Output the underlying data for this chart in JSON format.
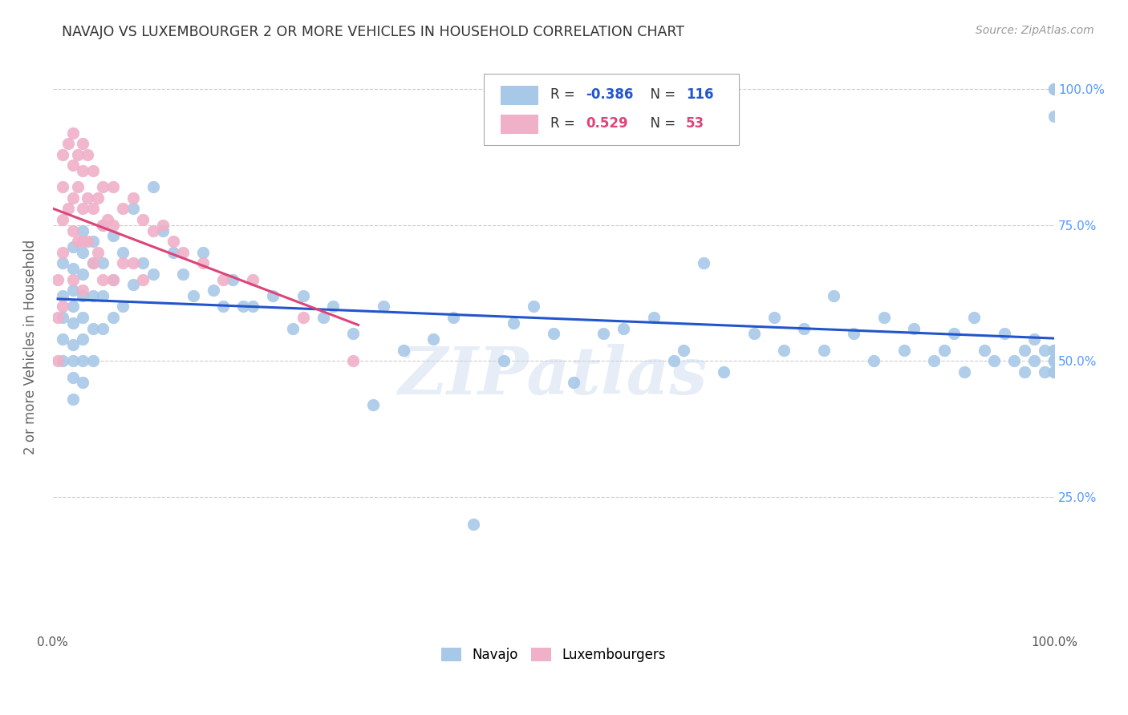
{
  "title": "NAVAJO VS LUXEMBOURGER 2 OR MORE VEHICLES IN HOUSEHOLD CORRELATION CHART",
  "source": "Source: ZipAtlas.com",
  "ylabel": "2 or more Vehicles in Household",
  "xlim": [
    0.0,
    1.0
  ],
  "ylim": [
    0.0,
    1.05
  ],
  "navajo_R": -0.386,
  "navajo_N": 116,
  "luxembourger_R": 0.529,
  "luxembourger_N": 53,
  "navajo_color": "#a8c8e8",
  "navajo_edge_color": "#a8c8e8",
  "navajo_line_color": "#2255cc",
  "luxembourger_color": "#f0b0c8",
  "luxembourger_edge_color": "#f0b0c8",
  "luxembourger_line_color": "#dd4477",
  "background_color": "#ffffff",
  "grid_color": "#cccccc",
  "title_color": "#333333",
  "source_color": "#999999",
  "axis_label_color": "#666666",
  "right_tick_color": "#5599ff",
  "watermark": "ZIPatlas",
  "navajo_x": [
    0.01,
    0.01,
    0.01,
    0.01,
    0.01,
    0.02,
    0.02,
    0.02,
    0.02,
    0.02,
    0.02,
    0.02,
    0.02,
    0.02,
    0.03,
    0.03,
    0.03,
    0.03,
    0.03,
    0.03,
    0.03,
    0.03,
    0.04,
    0.04,
    0.04,
    0.04,
    0.04,
    0.05,
    0.05,
    0.05,
    0.05,
    0.06,
    0.06,
    0.06,
    0.07,
    0.07,
    0.08,
    0.08,
    0.09,
    0.1,
    0.1,
    0.11,
    0.12,
    0.13,
    0.14,
    0.15,
    0.16,
    0.17,
    0.18,
    0.19,
    0.2,
    0.22,
    0.24,
    0.25,
    0.27,
    0.28,
    0.3,
    0.32,
    0.33,
    0.35,
    0.38,
    0.4,
    0.42,
    0.45,
    0.46,
    0.48,
    0.5,
    0.52,
    0.55,
    0.57,
    0.6,
    0.62,
    0.63,
    0.65,
    0.67,
    0.7,
    0.72,
    0.73,
    0.75,
    0.77,
    0.78,
    0.8,
    0.82,
    0.83,
    0.85,
    0.86,
    0.88,
    0.89,
    0.9,
    0.91,
    0.92,
    0.93,
    0.94,
    0.95,
    0.96,
    0.97,
    0.97,
    0.98,
    0.98,
    0.99,
    0.99,
    1.0,
    1.0,
    1.0,
    1.0,
    1.0,
    1.0,
    1.0,
    1.0,
    1.0,
    1.0,
    1.0,
    1.0,
    1.0,
    1.0,
    1.0,
    1.0
  ],
  "navajo_y": [
    0.68,
    0.62,
    0.58,
    0.54,
    0.5,
    0.71,
    0.67,
    0.63,
    0.6,
    0.57,
    0.53,
    0.5,
    0.47,
    0.43,
    0.74,
    0.7,
    0.66,
    0.62,
    0.58,
    0.54,
    0.5,
    0.46,
    0.72,
    0.68,
    0.62,
    0.56,
    0.5,
    0.75,
    0.68,
    0.62,
    0.56,
    0.73,
    0.65,
    0.58,
    0.7,
    0.6,
    0.78,
    0.64,
    0.68,
    0.82,
    0.66,
    0.74,
    0.7,
    0.66,
    0.62,
    0.7,
    0.63,
    0.6,
    0.65,
    0.6,
    0.6,
    0.62,
    0.56,
    0.62,
    0.58,
    0.6,
    0.55,
    0.42,
    0.6,
    0.52,
    0.54,
    0.58,
    0.2,
    0.5,
    0.57,
    0.6,
    0.55,
    0.46,
    0.55,
    0.56,
    0.58,
    0.5,
    0.52,
    0.68,
    0.48,
    0.55,
    0.58,
    0.52,
    0.56,
    0.52,
    0.62,
    0.55,
    0.5,
    0.58,
    0.52,
    0.56,
    0.5,
    0.52,
    0.55,
    0.48,
    0.58,
    0.52,
    0.5,
    0.55,
    0.5,
    0.52,
    0.48,
    0.54,
    0.5,
    0.52,
    0.48,
    0.52,
    0.5,
    0.48,
    0.5,
    0.52,
    0.5,
    0.48,
    0.5,
    1.0,
    1.0,
    0.95,
    0.52,
    0.5,
    0.48,
    0.5,
    0.52
  ],
  "lux_x": [
    0.005,
    0.005,
    0.005,
    0.01,
    0.01,
    0.01,
    0.01,
    0.01,
    0.015,
    0.015,
    0.02,
    0.02,
    0.02,
    0.02,
    0.02,
    0.025,
    0.025,
    0.025,
    0.03,
    0.03,
    0.03,
    0.03,
    0.03,
    0.035,
    0.035,
    0.035,
    0.04,
    0.04,
    0.04,
    0.045,
    0.045,
    0.05,
    0.05,
    0.05,
    0.055,
    0.06,
    0.06,
    0.06,
    0.07,
    0.07,
    0.08,
    0.08,
    0.09,
    0.09,
    0.1,
    0.11,
    0.12,
    0.13,
    0.15,
    0.17,
    0.2,
    0.25,
    0.3
  ],
  "lux_y": [
    0.65,
    0.58,
    0.5,
    0.88,
    0.82,
    0.76,
    0.7,
    0.6,
    0.9,
    0.78,
    0.92,
    0.86,
    0.8,
    0.74,
    0.65,
    0.88,
    0.82,
    0.72,
    0.9,
    0.85,
    0.78,
    0.72,
    0.63,
    0.88,
    0.8,
    0.72,
    0.85,
    0.78,
    0.68,
    0.8,
    0.7,
    0.82,
    0.75,
    0.65,
    0.76,
    0.82,
    0.75,
    0.65,
    0.78,
    0.68,
    0.8,
    0.68,
    0.76,
    0.65,
    0.74,
    0.75,
    0.72,
    0.7,
    0.68,
    0.65,
    0.65,
    0.58,
    0.5
  ]
}
